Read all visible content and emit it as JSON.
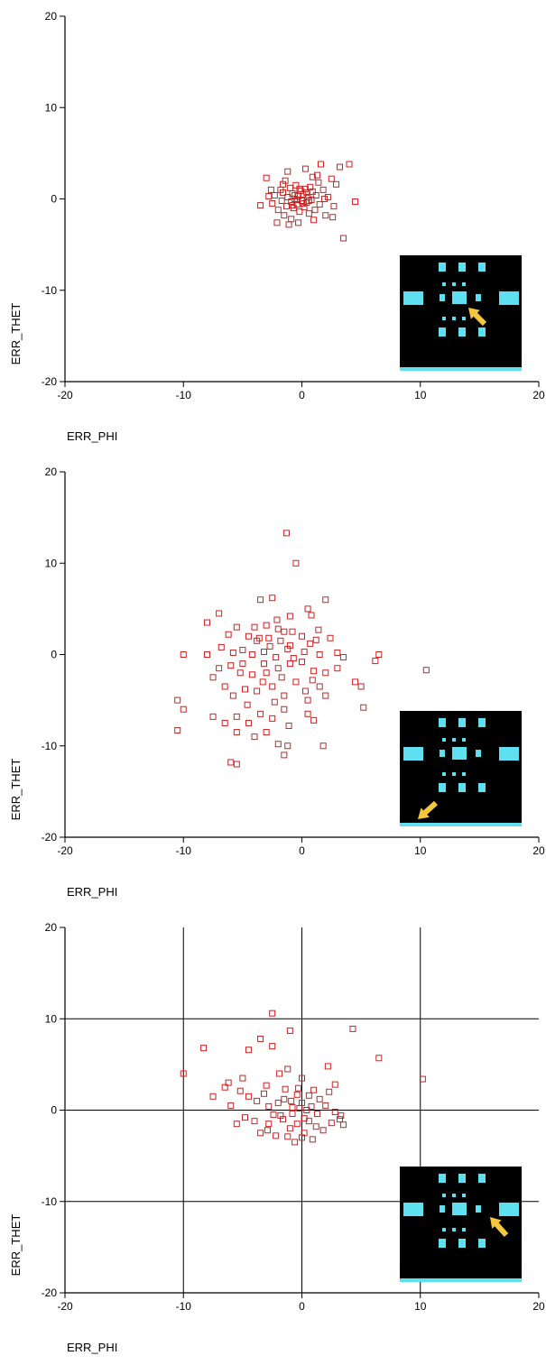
{
  "chart_data": [
    {
      "type": "scatter",
      "xlabel": "ERR_PHI",
      "ylabel": "ERR_THET",
      "xlim": [
        -20,
        20
      ],
      "ylim": [
        -20,
        20
      ],
      "xticks": [
        "-20",
        "-10",
        "0",
        "10",
        "20"
      ],
      "yticks": [
        "-20",
        "-10",
        "0",
        "10",
        "20"
      ],
      "grid": false,
      "marker": "hollow-square",
      "marker_color": "#cc2222",
      "inset_arrow_target": "center-right",
      "points": [
        [
          -3.5,
          -0.7
        ],
        [
          -3.0,
          2.3
        ],
        [
          -2.8,
          0.3
        ],
        [
          -2.5,
          -0.5
        ],
        [
          -2.3,
          0.4
        ],
        [
          -2.0,
          -1.2
        ],
        [
          -1.8,
          1.0
        ],
        [
          -1.7,
          -0.2
        ],
        [
          -1.6,
          0.7
        ],
        [
          -1.5,
          -1.8
        ],
        [
          -1.4,
          2.0
        ],
        [
          -1.3,
          -0.8
        ],
        [
          -1.2,
          0.2
        ],
        [
          -1.1,
          -2.8
        ],
        [
          -1.0,
          1.2
        ],
        [
          -0.9,
          -0.3
        ],
        [
          -0.8,
          0.6
        ],
        [
          -0.7,
          -1.0
        ],
        [
          -0.6,
          0.0
        ],
        [
          -0.5,
          1.5
        ],
        [
          -0.4,
          -0.6
        ],
        [
          -0.3,
          0.3
        ],
        [
          -0.2,
          -1.4
        ],
        [
          -0.1,
          0.9
        ],
        [
          0.0,
          -0.2
        ],
        [
          0.1,
          0.5
        ],
        [
          0.2,
          -0.9
        ],
        [
          0.3,
          1.1
        ],
        [
          0.4,
          -0.4
        ],
        [
          0.5,
          0.2
        ],
        [
          0.6,
          -1.6
        ],
        [
          0.7,
          1.3
        ],
        [
          0.8,
          -0.1
        ],
        [
          0.9,
          0.8
        ],
        [
          1.0,
          -2.3
        ],
        [
          1.1,
          -1.2
        ],
        [
          1.2,
          0.4
        ],
        [
          1.3,
          2.6
        ],
        [
          1.5,
          -0.6
        ],
        [
          1.6,
          3.8
        ],
        [
          1.8,
          1.0
        ],
        [
          2.0,
          -1.8
        ],
        [
          2.2,
          0.2
        ],
        [
          2.5,
          2.2
        ],
        [
          2.7,
          -0.8
        ],
        [
          2.9,
          1.6
        ],
        [
          3.2,
          3.5
        ],
        [
          3.5,
          -4.3
        ],
        [
          4.0,
          3.8
        ],
        [
          4.5,
          -0.3
        ],
        [
          -1.2,
          3.0
        ],
        [
          -0.9,
          -2.2
        ],
        [
          0.3,
          3.3
        ],
        [
          -2.1,
          -2.6
        ],
        [
          2.6,
          -2.0
        ],
        [
          -0.4,
          -0.1
        ],
        [
          0.1,
          -0.5
        ],
        [
          -0.6,
          0.4
        ],
        [
          0.4,
          0.7
        ],
        [
          -0.2,
          1.1
        ],
        [
          0.6,
          -0.2
        ],
        [
          -0.8,
          -0.7
        ],
        [
          1.4,
          1.8
        ],
        [
          -1.6,
          1.6
        ],
        [
          0.9,
          2.4
        ],
        [
          -0.3,
          -2.6
        ],
        [
          1.9,
          0.0
        ],
        [
          -2.6,
          1.0
        ]
      ]
    },
    {
      "type": "scatter",
      "xlabel": "ERR_PHI",
      "ylabel": "ERR_THET",
      "xlim": [
        -20,
        20
      ],
      "ylim": [
        -20,
        20
      ],
      "xticks": [
        "-20",
        "-10",
        "0",
        "10",
        "20"
      ],
      "yticks": [
        "-20",
        "-10",
        "0",
        "10",
        "20"
      ],
      "grid": false,
      "marker": "hollow-square",
      "marker_color": "#cc2222",
      "inset_arrow_target": "bottom-left",
      "points": [
        [
          -1.3,
          13.3
        ],
        [
          -0.5,
          10.0
        ],
        [
          -3.5,
          6.0
        ],
        [
          -2.5,
          6.2
        ],
        [
          2.0,
          6.0
        ],
        [
          -7.0,
          4.5
        ],
        [
          -1.0,
          4.2
        ],
        [
          0.5,
          5.0
        ],
        [
          0.8,
          4.3
        ],
        [
          -8.0,
          3.5
        ],
        [
          -5.5,
          3.0
        ],
        [
          -4.0,
          3.0
        ],
        [
          -3.0,
          3.2
        ],
        [
          -2.0,
          2.8
        ],
        [
          -1.5,
          2.5
        ],
        [
          -4.5,
          2.0
        ],
        [
          -3.8,
          1.5
        ],
        [
          -2.8,
          1.8
        ],
        [
          -1.8,
          1.5
        ],
        [
          -1.0,
          1.0
        ],
        [
          0.0,
          2.0
        ],
        [
          1.2,
          1.6
        ],
        [
          2.4,
          1.8
        ],
        [
          -6.8,
          0.8
        ],
        [
          -5.8,
          0.2
        ],
        [
          -5.0,
          0.5
        ],
        [
          -4.2,
          0.0
        ],
        [
          -3.2,
          0.3
        ],
        [
          -2.2,
          -0.3
        ],
        [
          -1.2,
          0.6
        ],
        [
          0.2,
          0.3
        ],
        [
          1.5,
          0.0
        ],
        [
          3.0,
          0.2
        ],
        [
          3.5,
          -0.3
        ],
        [
          6.5,
          0.0
        ],
        [
          6.2,
          -0.7
        ],
        [
          10.5,
          -1.7
        ],
        [
          -10.0,
          0.0
        ],
        [
          -8.0,
          0.0
        ],
        [
          -7.0,
          -1.5
        ],
        [
          -6.0,
          -1.2
        ],
        [
          -5.2,
          -2.0
        ],
        [
          -4.2,
          -2.2
        ],
        [
          -3.0,
          -2.0
        ],
        [
          -2.0,
          -1.5
        ],
        [
          -1.0,
          -1.0
        ],
        [
          0.0,
          -0.8
        ],
        [
          1.0,
          -1.8
        ],
        [
          2.0,
          -2.0
        ],
        [
          3.0,
          -1.5
        ],
        [
          4.5,
          -3.0
        ],
        [
          5.0,
          -3.5
        ],
        [
          -10.5,
          -5.0
        ],
        [
          -10.0,
          -6.0
        ],
        [
          -10.5,
          -8.3
        ],
        [
          -7.5,
          -2.5
        ],
        [
          -6.5,
          -3.5
        ],
        [
          -5.8,
          -4.5
        ],
        [
          -4.8,
          -3.8
        ],
        [
          -3.8,
          -4.0
        ],
        [
          -2.5,
          -3.5
        ],
        [
          -1.5,
          -4.5
        ],
        [
          -0.5,
          -3.0
        ],
        [
          0.5,
          -5.0
        ],
        [
          1.5,
          -3.5
        ],
        [
          -7.5,
          -6.8
        ],
        [
          -6.5,
          -7.5
        ],
        [
          -5.5,
          -6.8
        ],
        [
          -4.5,
          -7.5
        ],
        [
          -3.5,
          -6.5
        ],
        [
          -2.5,
          -7.0
        ],
        [
          -1.5,
          -6.0
        ],
        [
          0.5,
          -6.5
        ],
        [
          1.0,
          -7.2
        ],
        [
          2.0,
          -4.5
        ],
        [
          5.2,
          -5.8
        ],
        [
          -5.5,
          -8.5
        ],
        [
          -4.0,
          -9.0
        ],
        [
          -3.0,
          -8.5
        ],
        [
          -2.0,
          -9.8
        ],
        [
          -1.2,
          -10.0
        ],
        [
          -1.5,
          -11.0
        ],
        [
          1.8,
          -10.0
        ],
        [
          -6.0,
          -11.8
        ],
        [
          -5.5,
          -12.0
        ],
        [
          -3.2,
          -1.0
        ],
        [
          -2.7,
          0.9
        ],
        [
          -1.7,
          -2.5
        ],
        [
          -0.7,
          -0.4
        ],
        [
          0.7,
          1.2
        ],
        [
          -4.6,
          -5.5
        ],
        [
          -3.6,
          1.8
        ],
        [
          -0.8,
          2.5
        ],
        [
          0.9,
          -2.8
        ],
        [
          -6.2,
          2.2
        ],
        [
          -2.3,
          -5.2
        ],
        [
          -1.1,
          -7.8
        ],
        [
          0.3,
          -4.0
        ],
        [
          1.4,
          2.7
        ],
        [
          -5.0,
          -1.0
        ],
        [
          -3.3,
          -3.0
        ],
        [
          -2.1,
          3.8
        ]
      ]
    },
    {
      "type": "scatter",
      "xlabel": "ERR_PHI",
      "ylabel": "ERR_THET",
      "xlim": [
        -20,
        20
      ],
      "ylim": [
        -20,
        20
      ],
      "xticks": [
        "-20",
        "-10",
        "0",
        "10",
        "20"
      ],
      "yticks": [
        "-20",
        "-10",
        "0",
        "10",
        "20"
      ],
      "grid": true,
      "marker": "hollow-square",
      "marker_color": "#cc2222",
      "inset_arrow_target": "right",
      "points": [
        [
          -2.5,
          10.6
        ],
        [
          -1.0,
          8.7
        ],
        [
          4.3,
          8.9
        ],
        [
          -3.5,
          7.8
        ],
        [
          -2.5,
          7.0
        ],
        [
          -8.3,
          6.8
        ],
        [
          -4.5,
          6.6
        ],
        [
          6.5,
          5.7
        ],
        [
          -1.2,
          4.5
        ],
        [
          2.2,
          4.8
        ],
        [
          -10.0,
          4.0
        ],
        [
          10.2,
          3.4
        ],
        [
          -5.0,
          3.5
        ],
        [
          -6.2,
          3.0
        ],
        [
          -6.5,
          2.5
        ],
        [
          -3.0,
          2.7
        ],
        [
          0.0,
          3.5
        ],
        [
          2.8,
          2.8
        ],
        [
          -4.5,
          1.5
        ],
        [
          -3.8,
          1.0
        ],
        [
          -2.8,
          0.4
        ],
        [
          -2.0,
          0.8
        ],
        [
          -1.5,
          1.2
        ],
        [
          -0.8,
          0.3
        ],
        [
          0.0,
          0.8
        ],
        [
          0.8,
          0.4
        ],
        [
          1.5,
          1.2
        ],
        [
          2.0,
          0.5
        ],
        [
          2.8,
          -0.2
        ],
        [
          3.5,
          -1.6
        ],
        [
          3.2,
          -1.0
        ],
        [
          -7.5,
          1.5
        ],
        [
          -6.0,
          0.5
        ],
        [
          -5.5,
          -1.5
        ],
        [
          -4.8,
          -0.8
        ],
        [
          -4.0,
          -1.2
        ],
        [
          -3.5,
          -2.5
        ],
        [
          -2.8,
          -1.5
        ],
        [
          -2.2,
          -2.8
        ],
        [
          -1.6,
          -1.0
        ],
        [
          -1.0,
          -2.0
        ],
        [
          -0.4,
          -1.5
        ],
        [
          0.2,
          -2.5
        ],
        [
          0.6,
          -1.2
        ],
        [
          1.2,
          -1.8
        ],
        [
          1.8,
          -2.2
        ],
        [
          2.5,
          -1.4
        ],
        [
          -0.6,
          -3.5
        ],
        [
          0.0,
          -3.0
        ],
        [
          -1.2,
          -2.9
        ],
        [
          -0.2,
          0.2
        ],
        [
          0.4,
          0.0
        ],
        [
          -0.8,
          -0.4
        ],
        [
          -0.4,
          1.7
        ],
        [
          0.6,
          1.6
        ],
        [
          -1.8,
          -0.6
        ],
        [
          1.0,
          2.2
        ],
        [
          -1.4,
          2.3
        ],
        [
          -2.4,
          -0.5
        ],
        [
          0.2,
          -0.9
        ],
        [
          -0.3,
          2.4
        ],
        [
          1.3,
          -0.4
        ],
        [
          2.3,
          2.0
        ],
        [
          -3.2,
          1.8
        ],
        [
          -5.2,
          2.1
        ],
        [
          3.3,
          -0.6
        ],
        [
          -1.9,
          4.0
        ],
        [
          0.9,
          -3.2
        ],
        [
          -2.9,
          -2.2
        ],
        [
          -0.9,
          1.0
        ]
      ]
    }
  ]
}
